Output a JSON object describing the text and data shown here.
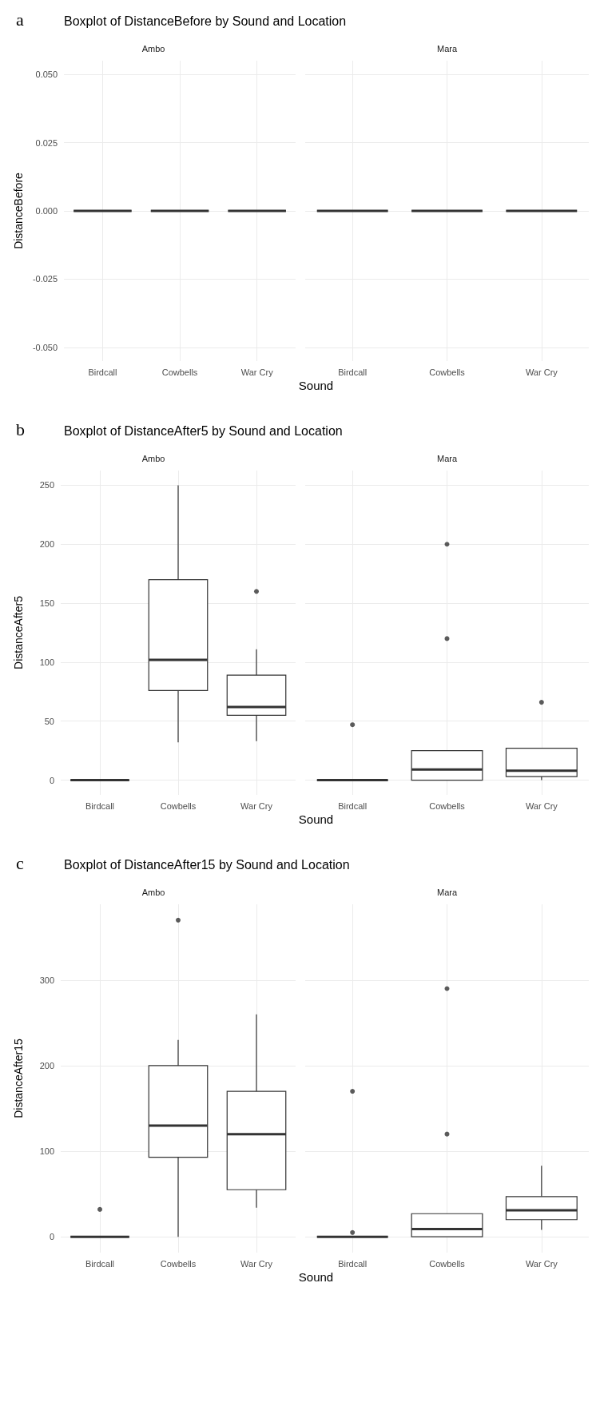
{
  "chart_data": [
    {
      "type": "box",
      "title": "Boxplot of DistanceBefore by Sound and Location",
      "subtitle": "Ambo",
      "annotations": [
        "a"
      ],
      "xlabel": "Sound",
      "ylabel": "DistanceBefore",
      "categories": [
        "Birdcall",
        "Cowbells",
        "War Cry"
      ],
      "ylim": [
        -0.055,
        0.055
      ],
      "yticks": [
        {
          "value": -0.05,
          "label": "-0.050"
        },
        {
          "value": -0.025,
          "label": "-0.025"
        },
        {
          "value": 0,
          "label": "0.000"
        },
        {
          "value": 0.025,
          "label": "0.025"
        },
        {
          "value": 0.05,
          "label": "0.050"
        }
      ],
      "grid": true,
      "boxes": [
        {
          "low": 0,
          "q1": 0,
          "median": 0,
          "q3": 0,
          "high": 0
        },
        {
          "low": 0,
          "q1": 0,
          "median": 0,
          "q3": 0,
          "high": 0
        },
        {
          "low": 0,
          "q1": 0,
          "median": 0,
          "q3": 0,
          "high": 0
        }
      ]
    },
    {
      "type": "box",
      "subtitle": "Mara",
      "categories": [
        "Birdcall",
        "Cowbells",
        "War Cry"
      ],
      "ylim": [
        -0.055,
        0.055
      ],
      "yticks": [
        -0.05,
        -0.025,
        0,
        0.025,
        0.05
      ],
      "tick_labels": "x",
      "grid": true,
      "boxes": [
        {
          "low": 0,
          "q1": 0,
          "median": 0,
          "q3": 0,
          "high": 0
        },
        {
          "low": 0,
          "q1": 0,
          "median": 0,
          "q3": 0,
          "high": 0
        },
        {
          "low": 0,
          "q1": 0,
          "median": 0,
          "q3": 0,
          "high": 0
        }
      ]
    },
    {
      "type": "box",
      "title": "Boxplot of DistanceAfter5 by Sound and Location",
      "subtitle": "Ambo",
      "annotations": [
        "b"
      ],
      "xlabel": "Sound",
      "ylabel": "DistanceAfter5",
      "categories": [
        "Birdcall",
        "Cowbells",
        "War Cry"
      ],
      "ylim": [
        -12.5,
        262.5
      ],
      "yticks": [
        0,
        50,
        100,
        150,
        200,
        250
      ],
      "grid": true,
      "boxes": [
        {
          "low": 0,
          "q1": 0,
          "median": 0,
          "q3": 0,
          "high": 0
        },
        {
          "low": 32,
          "q1": 76,
          "median": 102,
          "q3": 170,
          "high": 250
        },
        {
          "low": 33,
          "q1": 55,
          "median": 62,
          "q3": 89,
          "high": 111,
          "outliers": [
            160
          ]
        }
      ]
    },
    {
      "type": "box",
      "subtitle": "Mara",
      "categories": [
        "Birdcall",
        "Cowbells",
        "War Cry"
      ],
      "ylim": [
        -12.5,
        262.5
      ],
      "yticks": [
        0,
        50,
        100,
        150,
        200,
        250
      ],
      "tick_labels": "x",
      "grid": true,
      "boxes": [
        {
          "low": 0,
          "q1": 0,
          "median": 0,
          "q3": 0,
          "high": 0,
          "outliers": [
            47
          ]
        },
        {
          "low": 0,
          "q1": 0,
          "median": 9,
          "q3": 25,
          "high": 25,
          "outliers": [
            120,
            200
          ]
        },
        {
          "low": 0,
          "q1": 3,
          "median": 8,
          "q3": 27,
          "high": 27,
          "outliers": [
            66
          ]
        }
      ]
    },
    {
      "type": "box",
      "title": "Boxplot of DistanceAfter15 by Sound and Location",
      "subtitle": "Ambo",
      "annotations": [
        "c"
      ],
      "xlabel": "Sound",
      "ylabel": "DistanceAfter15",
      "categories": [
        "Birdcall",
        "Cowbells",
        "War Cry"
      ],
      "ylim": [
        -18.5,
        388.5
      ],
      "yticks": [
        0,
        100,
        200,
        300
      ],
      "grid": true,
      "boxes": [
        {
          "low": 0,
          "q1": 0,
          "median": 0,
          "q3": 0,
          "high": 0,
          "outliers": [
            32
          ]
        },
        {
          "low": 0,
          "q1": 93,
          "median": 130,
          "q3": 200,
          "high": 230,
          "outliers": [
            370
          ]
        },
        {
          "low": 34,
          "q1": 55,
          "median": 120,
          "q3": 170,
          "high": 260
        }
      ]
    },
    {
      "type": "box",
      "subtitle": "Mara",
      "categories": [
        "Birdcall",
        "Cowbells",
        "War Cry"
      ],
      "ylim": [
        -18.5,
        388.5
      ],
      "yticks": [
        0,
        100,
        200,
        300
      ],
      "tick_labels": "x",
      "grid": true,
      "boxes": [
        {
          "low": 0,
          "q1": 0,
          "median": 0,
          "q3": 0,
          "high": 0,
          "outliers": [
            5,
            170
          ]
        },
        {
          "low": 0,
          "q1": 0,
          "median": 9,
          "q3": 27,
          "high": 27,
          "outliers": [
            120,
            290
          ]
        },
        {
          "low": 8,
          "q1": 20,
          "median": 31,
          "q3": 47,
          "high": 83
        }
      ]
    }
  ]
}
